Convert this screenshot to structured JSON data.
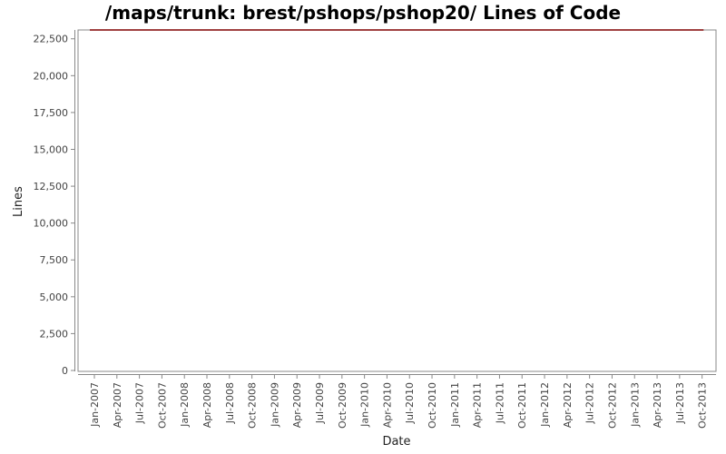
{
  "chart_data": {
    "type": "line",
    "title": "/maps/trunk: brest/pshops/pshop20/ Lines of Code",
    "xlabel": "Date",
    "ylabel": "Lines",
    "x_ticks": [
      "Jan-2007",
      "Apr-2007",
      "Jul-2007",
      "Oct-2007",
      "Jan-2008",
      "Apr-2008",
      "Jul-2008",
      "Oct-2008",
      "Jan-2009",
      "Apr-2009",
      "Jul-2009",
      "Oct-2009",
      "Jan-2010",
      "Apr-2010",
      "Jul-2010",
      "Oct-2010",
      "Jan-2011",
      "Apr-2011",
      "Jul-2011",
      "Oct-2011",
      "Jan-2012",
      "Apr-2012",
      "Jul-2012",
      "Oct-2012",
      "Jan-2013",
      "Apr-2013",
      "Jul-2013",
      "Oct-2013"
    ],
    "y_ticks": [
      "0",
      "2,500",
      "5,000",
      "7,500",
      "10,000",
      "12,500",
      "15,000",
      "17,500",
      "20,000",
      "22,500"
    ],
    "ylim": [
      0,
      23100
    ],
    "xlim": [
      "2006-10-26",
      "2013-11-27"
    ],
    "grid": false,
    "series": [
      {
        "color": "#800000",
        "x": [
          "2006-12-13",
          "2013-10-07"
        ],
        "y": [
          23100,
          23100
        ]
      }
    ]
  }
}
